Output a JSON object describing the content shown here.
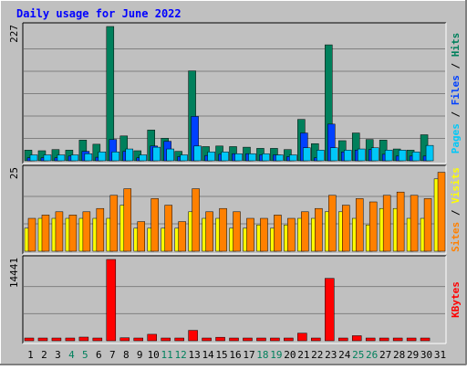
{
  "title": "Daily usage for June 2022",
  "colors": {
    "background": "#c0c0c0",
    "title": "#0000ff",
    "hits": "#00805c",
    "files": "#0040ff",
    "pages": "#00c8f8",
    "visits": "#ffff00",
    "sites": "#ff8000",
    "kbytes": "#ff0000",
    "weekend_day": "#00805c",
    "weekday": "#000000"
  },
  "chart_data": [
    {
      "type": "bar",
      "name": "hits-files-pages",
      "max_label": "227",
      "ymax": 227,
      "legend": [
        "Pages",
        "Files",
        "Hits"
      ],
      "x": [
        1,
        2,
        3,
        4,
        5,
        6,
        7,
        8,
        9,
        10,
        11,
        12,
        13,
        14,
        15,
        16,
        17,
        18,
        19,
        20,
        21,
        22,
        23,
        24,
        25,
        26,
        27,
        28,
        29,
        30,
        31
      ],
      "series": [
        {
          "name": "Hits",
          "color_key": "hits",
          "values": [
            18,
            17,
            19,
            18,
            35,
            28,
            227,
            42,
            17,
            52,
            38,
            16,
            152,
            24,
            25,
            24,
            23,
            21,
            21,
            19,
            70,
            29,
            196,
            34,
            47,
            36,
            35,
            20,
            18,
            44,
            0
          ]
        },
        {
          "name": "Files",
          "color_key": "files",
          "values": [
            5,
            5,
            5,
            8,
            16,
            6,
            36,
            16,
            5,
            25,
            33,
            7,
            75,
            9,
            11,
            12,
            12,
            10,
            10,
            7,
            47,
            5,
            62,
            15,
            18,
            19,
            11,
            8,
            8,
            8,
            0
          ]
        },
        {
          "name": "Pages",
          "color_key": "pages",
          "values": [
            10,
            10,
            10,
            10,
            12,
            15,
            15,
            20,
            10,
            23,
            20,
            10,
            25,
            15,
            15,
            12,
            12,
            12,
            10,
            10,
            22,
            18,
            22,
            18,
            20,
            22,
            18,
            18,
            15,
            26,
            0
          ]
        }
      ]
    },
    {
      "type": "bar",
      "name": "sites-visits",
      "max_label": "25",
      "ymax": 25,
      "legend": [
        "Sites",
        "Visits"
      ],
      "x": [
        1,
        2,
        3,
        4,
        5,
        6,
        7,
        8,
        9,
        10,
        11,
        12,
        13,
        14,
        15,
        16,
        17,
        18,
        19,
        20,
        21,
        22,
        23,
        24,
        25,
        26,
        27,
        28,
        29,
        30,
        31
      ],
      "series": [
        {
          "name": "Sites",
          "color_key": "sites",
          "values": [
            10,
            11,
            12,
            11,
            12,
            13,
            17,
            19,
            9,
            16,
            14,
            9,
            19,
            12,
            13,
            12,
            10,
            10,
            11,
            10,
            12,
            13,
            17,
            14,
            16,
            15,
            17,
            18,
            17,
            16,
            24
          ]
        },
        {
          "name": "Visits",
          "color_key": "visits",
          "values": [
            7,
            10,
            10,
            10,
            10,
            10,
            10,
            14,
            7,
            7,
            7,
            7,
            12,
            10,
            10,
            7,
            7,
            8,
            7,
            8,
            10,
            10,
            12,
            12,
            10,
            8,
            13,
            13,
            10,
            10,
            22
          ]
        }
      ]
    },
    {
      "type": "bar",
      "name": "kbytes",
      "max_label": "14441",
      "ymax": 14441,
      "legend": [
        "KBytes"
      ],
      "x": [
        1,
        2,
        3,
        4,
        5,
        6,
        7,
        8,
        9,
        10,
        11,
        12,
        13,
        14,
        15,
        16,
        17,
        18,
        19,
        20,
        21,
        22,
        23,
        24,
        25,
        26,
        27,
        28,
        29,
        30,
        31
      ],
      "series": [
        {
          "name": "KBytes",
          "color_key": "kbytes",
          "values": [
            300,
            300,
            300,
            300,
            650,
            300,
            14441,
            530,
            300,
            1150,
            200,
            200,
            1850,
            300,
            620,
            300,
            300,
            300,
            300,
            200,
            1350,
            300,
            11080,
            300,
            900,
            200,
            300,
            300,
            300,
            300,
            0
          ]
        }
      ]
    }
  ],
  "x_labels": [
    "1",
    "2",
    "3",
    "4",
    "5",
    "6",
    "7",
    "8",
    "9",
    "10",
    "11",
    "12",
    "13",
    "14",
    "15",
    "16",
    "17",
    "18",
    "19",
    "20",
    "21",
    "22",
    "23",
    "24",
    "25",
    "26",
    "27",
    "28",
    "29",
    "30",
    "31"
  ],
  "weekend_days": [
    4,
    5,
    11,
    12,
    18,
    19,
    25,
    26
  ]
}
